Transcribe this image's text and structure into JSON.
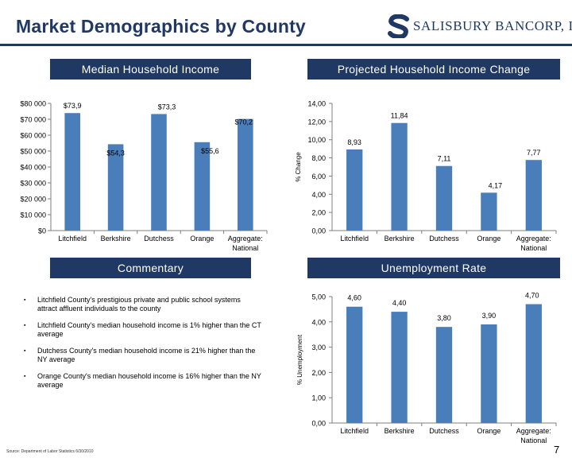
{
  "page": {
    "title": "Market Demographics by County",
    "brand": "SALISBURY BANCORP, INC.",
    "source": "Source: Department of Labor Statistics 6/30/2010",
    "page_number": "7",
    "colors": {
      "navy": "#1f3864",
      "bar": "#4a7ebb"
    }
  },
  "sections": {
    "median_income": "Median Household Income",
    "projected_change": "Projected Household Income Change",
    "commentary": "Commentary",
    "unemployment": "Unemployment Rate"
  },
  "commentary": {
    "items": [
      "Litchfield County's prestigious private and public school systems attract affluent individuals to the county",
      "Litchfield County's median household income is 1% higher than the CT average",
      "Dutchess County's median household income is 21% higher than the NY average",
      "Orange County's median household income is 16% higher than the NY average"
    ]
  },
  "chart_data": [
    {
      "type": "bar",
      "title": "Median Household Income",
      "categories": [
        "Litchfield",
        "Berkshire",
        "Dutchess",
        "Orange",
        "Aggregate: National"
      ],
      "values": [
        73.9,
        54.3,
        73.3,
        55.6,
        70.2
      ],
      "data_labels": [
        "$73,9",
        "$54,3",
        "$73,3",
        "$55,6",
        "$70,2"
      ],
      "ylim": [
        0,
        80000
      ],
      "yticks": [
        "$0",
        "$10 000",
        "$20 000",
        "$30 000",
        "$40 000",
        "$50 000",
        "$60 000",
        "$70 000",
        "$80 000"
      ],
      "ylabel": "",
      "xlabel": ""
    },
    {
      "type": "bar",
      "title": "Projected Household Income Change",
      "categories": [
        "Litchfield",
        "Berkshire",
        "Dutchess",
        "Orange",
        "Aggregate: National"
      ],
      "values": [
        8.93,
        11.84,
        7.11,
        4.17,
        7.77
      ],
      "data_labels": [
        "8,93",
        "11,84",
        "7,11",
        "4,17",
        "7,77"
      ],
      "ylim": [
        0,
        14
      ],
      "yticks": [
        "0,00",
        "2,00",
        "4,00",
        "6,00",
        "8,00",
        "10,00",
        "12,00",
        "14,00"
      ],
      "ylabel": "% Change",
      "xlabel": ""
    },
    {
      "type": "bar",
      "title": "Unemployment Rate",
      "categories": [
        "Litchfield",
        "Berkshire",
        "Dutchess",
        "Orange",
        "Aggregate: National"
      ],
      "values": [
        4.6,
        4.4,
        3.8,
        3.9,
        4.7
      ],
      "data_labels": [
        "4,60",
        "4,40",
        "3,80",
        "3,90",
        "4,70"
      ],
      "ylim": [
        0,
        5
      ],
      "yticks": [
        "0,00",
        "1,00",
        "2,00",
        "3,00",
        "4,00",
        "5,00"
      ],
      "ylabel": "% Unemployment",
      "xlabel": ""
    }
  ]
}
